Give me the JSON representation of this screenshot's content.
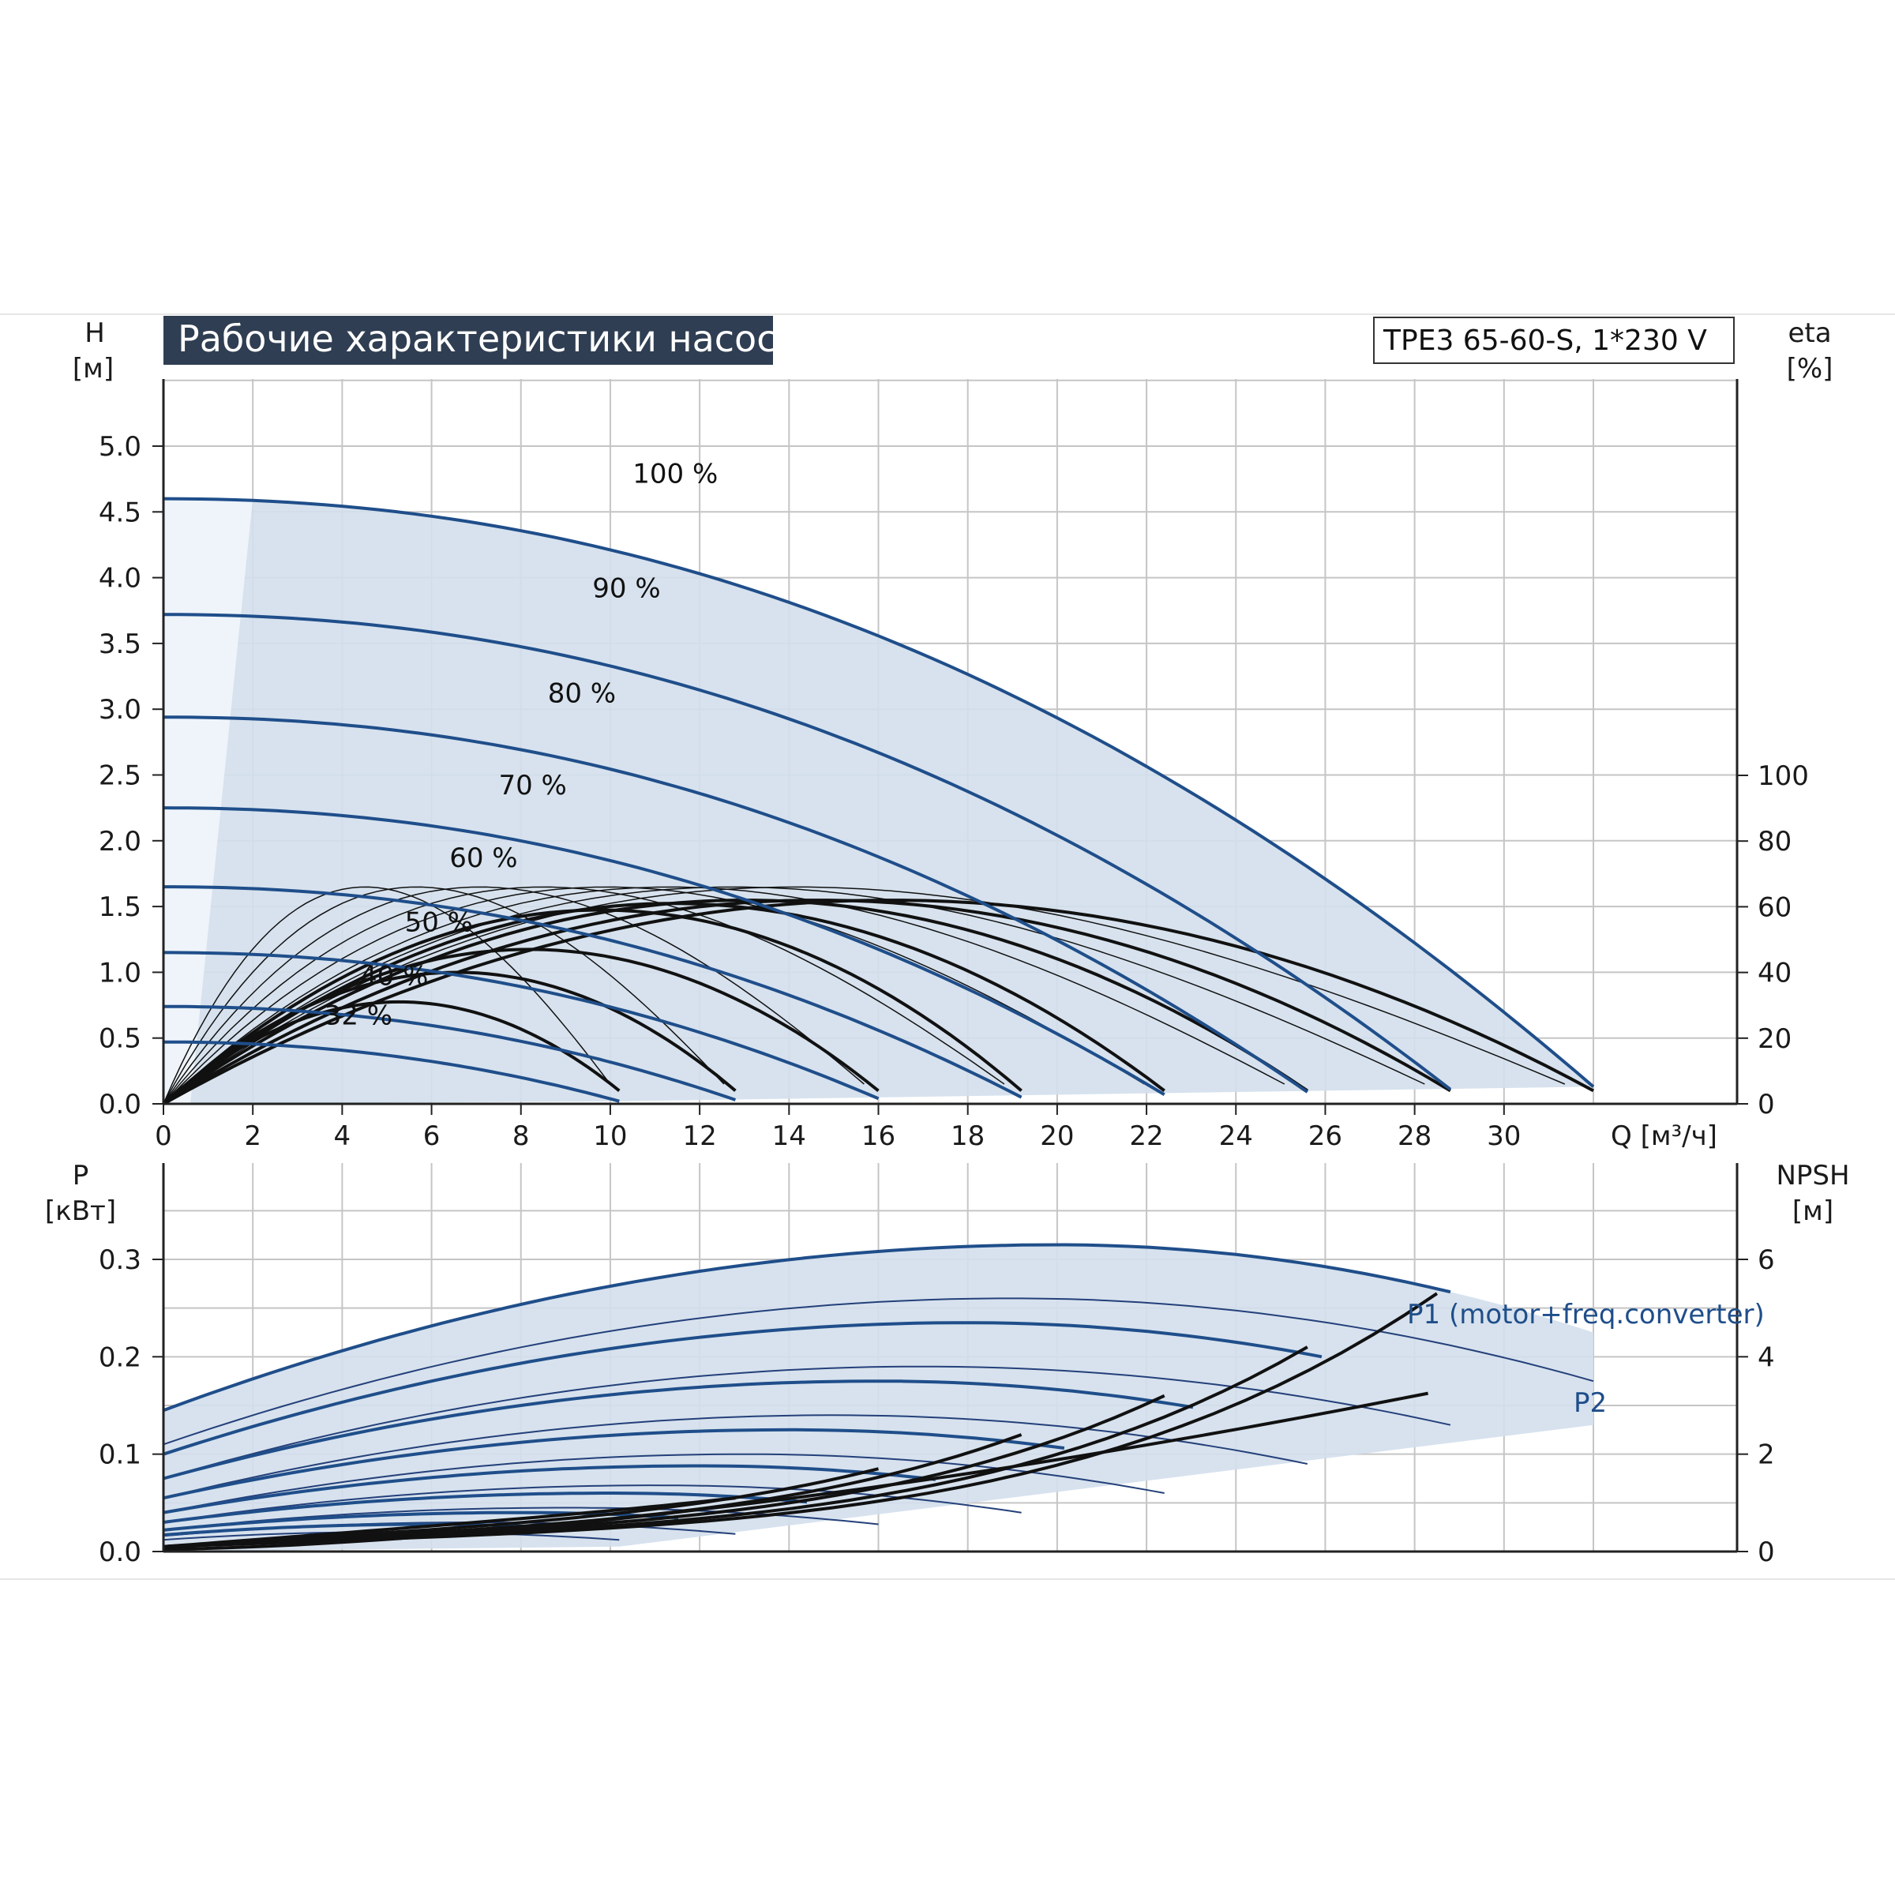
{
  "title": "Рабочие характеристики насоса",
  "model": "TPE3 65-60-S, 1*230 V",
  "colors": {
    "head_curve": "#1f4e8a",
    "eff_curve": "#111111",
    "area_fill": "#d3dfec",
    "grid": "#c5c5c5",
    "title_bg": "#2f3e52"
  },
  "chart_data": [
    {
      "type": "line",
      "name": "head",
      "ylabel": "H",
      "yunit": "[м]",
      "y2label": "eta",
      "y2unit": "[%]",
      "xlabel": "Q [м³/ч]",
      "xlim": [
        0,
        32
      ],
      "ylim": [
        0,
        5.0
      ],
      "y2lim": [
        0,
        100
      ],
      "x_ticks": [
        "0",
        "2",
        "4",
        "6",
        "8",
        "10",
        "12",
        "14",
        "16",
        "18",
        "20",
        "22",
        "24",
        "26",
        "28",
        "30"
      ],
      "y_ticks": [
        "0.0",
        "0.5",
        "1.0",
        "1.5",
        "2.0",
        "2.5",
        "3.0",
        "3.5",
        "4.0",
        "4.5",
        "5.0"
      ],
      "y2_ticks": [
        "0",
        "20",
        "40",
        "60",
        "80",
        "100"
      ],
      "grid": true,
      "speed_labels": [
        "100 %",
        "90 %",
        "80 %",
        "70 %",
        "60 %",
        "50 %",
        "40 %",
        "32 %"
      ],
      "series": [
        {
          "name": "100 %",
          "h0": 4.6,
          "qmax": 32.0,
          "hend": 0.13
        },
        {
          "name": "90 %",
          "h0": 3.72,
          "qmax": 28.8,
          "hend": 0.11
        },
        {
          "name": "80 %",
          "h0": 2.94,
          "qmax": 25.6,
          "hend": 0.09
        },
        {
          "name": "70 %",
          "h0": 2.25,
          "qmax": 22.4,
          "hend": 0.07
        },
        {
          "name": "60 %",
          "h0": 1.65,
          "qmax": 19.2,
          "hend": 0.05
        },
        {
          "name": "50 %",
          "h0": 1.15,
          "qmax": 16.0,
          "hend": 0.04
        },
        {
          "name": "40 %",
          "h0": 0.74,
          "qmax": 12.8,
          "hend": 0.03
        },
        {
          "name": "32 %",
          "h0": 0.47,
          "qmax": 10.2,
          "hend": 0.02
        }
      ],
      "efficiency_series": [
        {
          "speed": "100 %",
          "eta_max": 60,
          "q_end": 32.0
        },
        {
          "speed": "90 %",
          "eta_max": 60,
          "q_end": 28.8
        },
        {
          "speed": "80 %",
          "eta_max": 60,
          "q_end": 25.6
        },
        {
          "speed": "70 %",
          "eta_max": 59,
          "q_end": 22.4
        },
        {
          "speed": "60 %",
          "eta_max": 57,
          "q_end": 19.2
        },
        {
          "speed": "50 %",
          "eta_max": 45,
          "q_end": 16.0
        },
        {
          "speed": "40 %",
          "eta_max": 38,
          "q_end": 12.8
        },
        {
          "speed": "32 %",
          "eta_max": 29,
          "q_end": 10.2
        }
      ]
    },
    {
      "type": "line",
      "name": "power",
      "ylabel": "P",
      "yunit": "[кВт]",
      "y2label": "NPSH",
      "y2unit": "[м]",
      "xlim": [
        0,
        32
      ],
      "ylim": [
        0,
        0.35
      ],
      "y2lim": [
        0,
        7
      ],
      "y_ticks": [
        "0.0",
        "0.1",
        "0.2",
        "0.3"
      ],
      "y2_ticks": [
        "0",
        "2",
        "4",
        "6"
      ],
      "grid": true,
      "p1_label": "P1 (motor+freq.converter)",
      "p2_label": "P2",
      "series": [
        {
          "name": "P1 100 %",
          "p0": 0.145,
          "ppeak": 0.315,
          "qpeak": 20,
          "pend": 0.225,
          "qmax": 32.0
        },
        {
          "name": "P2 100 %",
          "p0": 0.11,
          "ppeak": 0.26,
          "qpeak": 19,
          "pend": 0.175,
          "qmax": 32.0
        },
        {
          "name": "P1 90 %",
          "p0": 0.1,
          "ppeak": 0.235,
          "qpeak": 18,
          "pend": 0.17,
          "qmax": 28.8
        },
        {
          "name": "P2 90 %",
          "p0": 0.075,
          "ppeak": 0.19,
          "qpeak": 17,
          "pend": 0.13,
          "qmax": 28.8
        },
        {
          "name": "P1 80 %",
          "p0": 0.075,
          "ppeak": 0.175,
          "qpeak": 16,
          "pend": 0.125,
          "qmax": 25.6
        },
        {
          "name": "P2 80 %",
          "p0": 0.055,
          "ppeak": 0.14,
          "qpeak": 15,
          "pend": 0.09,
          "qmax": 25.6
        },
        {
          "name": "P1 70 %",
          "p0": 0.055,
          "ppeak": 0.125,
          "qpeak": 14,
          "pend": 0.09,
          "qmax": 22.4
        },
        {
          "name": "P2 70 %",
          "p0": 0.04,
          "ppeak": 0.1,
          "qpeak": 13,
          "pend": 0.06,
          "qmax": 22.4
        },
        {
          "name": "P1 60 %",
          "p0": 0.04,
          "ppeak": 0.088,
          "qpeak": 12,
          "pend": 0.062,
          "qmax": 19.2
        },
        {
          "name": "P2 60 %",
          "p0": 0.03,
          "ppeak": 0.068,
          "qpeak": 11,
          "pend": 0.04,
          "qmax": 19.2
        },
        {
          "name": "P1 50 %",
          "p0": 0.03,
          "ppeak": 0.06,
          "qpeak": 10,
          "pend": 0.043,
          "qmax": 16.0
        },
        {
          "name": "P2 50 %",
          "p0": 0.022,
          "ppeak": 0.045,
          "qpeak": 9,
          "pend": 0.028,
          "qmax": 16.0
        },
        {
          "name": "P1 40 %",
          "p0": 0.022,
          "ppeak": 0.04,
          "qpeak": 8,
          "pend": 0.03,
          "qmax": 12.8
        },
        {
          "name": "P2 40 %",
          "p0": 0.016,
          "ppeak": 0.03,
          "qpeak": 7,
          "pend": 0.018,
          "qmax": 12.8
        },
        {
          "name": "P1 32 %",
          "p0": 0.017,
          "ppeak": 0.028,
          "qpeak": 6,
          "pend": 0.02,
          "qmax": 10.2
        },
        {
          "name": "P2 32 %",
          "p0": 0.012,
          "ppeak": 0.02,
          "qpeak": 5,
          "pend": 0.012,
          "qmax": 10.2
        }
      ],
      "npsh_series": [
        {
          "speed": "100 %",
          "q_end": 28.5,
          "npsh_end": 5.3
        },
        {
          "speed": "90 %",
          "q_end": 25.6,
          "npsh_end": 4.2
        },
        {
          "speed": "80 %",
          "q_end": 22.4,
          "npsh_end": 3.2
        },
        {
          "speed": "70 %",
          "q_end": 19.2,
          "npsh_end": 2.4
        },
        {
          "speed": "60 %",
          "q_end": 16.0,
          "npsh_end": 1.7
        },
        {
          "speed": "50 %",
          "q_end": 12.8,
          "npsh_end": 1.1
        }
      ]
    }
  ]
}
